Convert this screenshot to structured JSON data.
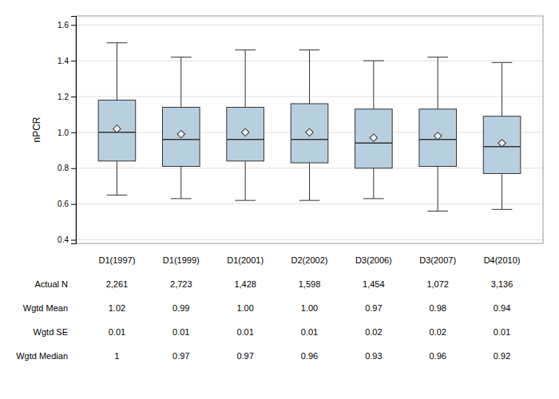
{
  "chart_data": {
    "type": "box",
    "categories": [
      "D1(1997)",
      "D1(1999)",
      "D1(2001)",
      "D2(2002)",
      "D3(2006)",
      "D3(2007)",
      "D4(2010)"
    ],
    "q1": [
      0.84,
      0.81,
      0.84,
      0.83,
      0.8,
      0.81,
      0.77
    ],
    "q3": [
      1.18,
      1.14,
      1.14,
      1.16,
      1.13,
      1.13,
      1.09
    ],
    "median": [
      1.0,
      0.96,
      0.96,
      0.96,
      0.94,
      0.96,
      0.92
    ],
    "mean": [
      1.02,
      0.99,
      1.0,
      1.0,
      0.97,
      0.98,
      0.94
    ],
    "whisker_low": [
      0.65,
      0.63,
      0.62,
      0.62,
      0.63,
      0.56,
      0.57
    ],
    "whisker_high": [
      1.5,
      1.42,
      1.46,
      1.46,
      1.4,
      1.42,
      1.39
    ],
    "color": "#b8cfe0",
    "ylabel": "nPCR",
    "ylim": [
      0.38,
      1.65
    ],
    "yticks": [
      0.4,
      0.6,
      0.8,
      {
        "value": 1.0,
        "label": "1.0"
      },
      1.2,
      1.4,
      1.6
    ],
    "grid": true,
    "table": {
      "row_labels": [
        "Actual N",
        "Wgtd Mean",
        "Wgtd SE",
        "Wgtd Median"
      ],
      "rows": [
        [
          "2,261",
          "2,723",
          "1,428",
          "1,598",
          "1,454",
          "1,072",
          "3,136"
        ],
        [
          "1.02",
          "0.99",
          "1.00",
          "1.00",
          "0.97",
          "0.98",
          "0.94"
        ],
        [
          "0.01",
          "0.01",
          "0.01",
          "0.01",
          "0.02",
          "0.02",
          "0.01"
        ],
        [
          "1",
          "0.97",
          "0.97",
          "0.96",
          "0.93",
          "0.96",
          "0.92"
        ]
      ]
    }
  }
}
